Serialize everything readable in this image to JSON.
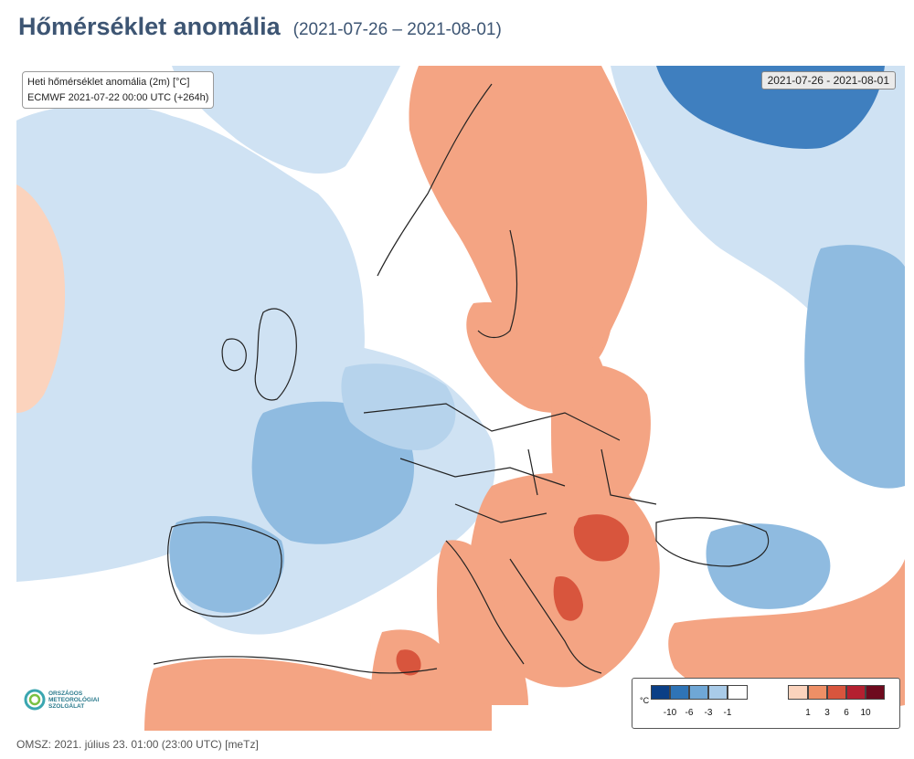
{
  "header": {
    "title": "Hőmérséklet anomália",
    "period": "(2021-07-26 – 2021-08-01)"
  },
  "map": {
    "info_line1": "Heti hőmérséklet anomália (2m) [°C]",
    "info_line2": "ECMWF 2021-07-22 00:00 UTC (+264h)",
    "date_range": "2021-07-26 - 2021-08-01",
    "logo_lines": [
      "Országos",
      "Meteorológiai",
      "Szolgálat"
    ]
  },
  "legend": {
    "unit": "°C",
    "cold_labels": [
      "-10",
      "-6",
      "-3",
      "-1"
    ],
    "warm_labels": [
      "1",
      "3",
      "6",
      "10"
    ],
    "cold_colors": [
      "#0b3f86",
      "#2f74b6",
      "#6fa7d6",
      "#a9cbe8"
    ],
    "neutral_color": "#ffffff",
    "warm_colors": [
      "#fbd3bd",
      "#ee8f66",
      "#d8553d",
      "#b42030",
      "#6e0a1e"
    ]
  },
  "footer": {
    "text": "OMSZ: 2021. július 23. 01:00 (23:00 UTC) [meTz]"
  }
}
